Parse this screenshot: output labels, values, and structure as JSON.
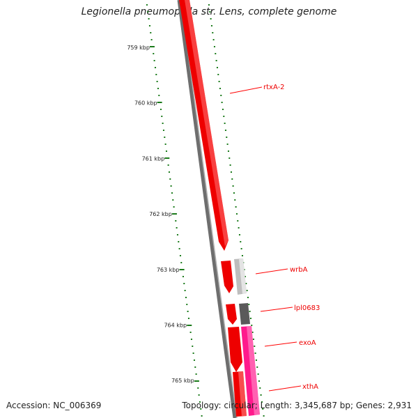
{
  "title": "Legionella pneumophila str. Lens, complete genome",
  "footer": {
    "accession": "Accession: NC_006369",
    "stats": "Topology: circular; Length: 3,345,687 bp; Genes: 2,931"
  },
  "ruler": {
    "labels": [
      "759 kbp",
      "760 kbp",
      "761 kbp",
      "762 kbp",
      "763 kbp",
      "764 kbp",
      "765 kbp"
    ],
    "tick_color": "#1a7a1a"
  },
  "genes": [
    {
      "name": "rtxA-2",
      "strand": "+",
      "color": "#ff0000"
    },
    {
      "name": "wrbA",
      "strand": "-",
      "color": "#bdbdbd"
    },
    {
      "name": "lpl0683",
      "strand": "-",
      "color": "#555555"
    },
    {
      "name": "exoA",
      "strand": "-",
      "color": "#ff1493"
    },
    {
      "name": "xthA",
      "strand": "+",
      "color": "#ff0000"
    }
  ],
  "colors": {
    "backbone": "#777777",
    "forward_gene": "#ff0000",
    "label_line": "#ff0000"
  }
}
